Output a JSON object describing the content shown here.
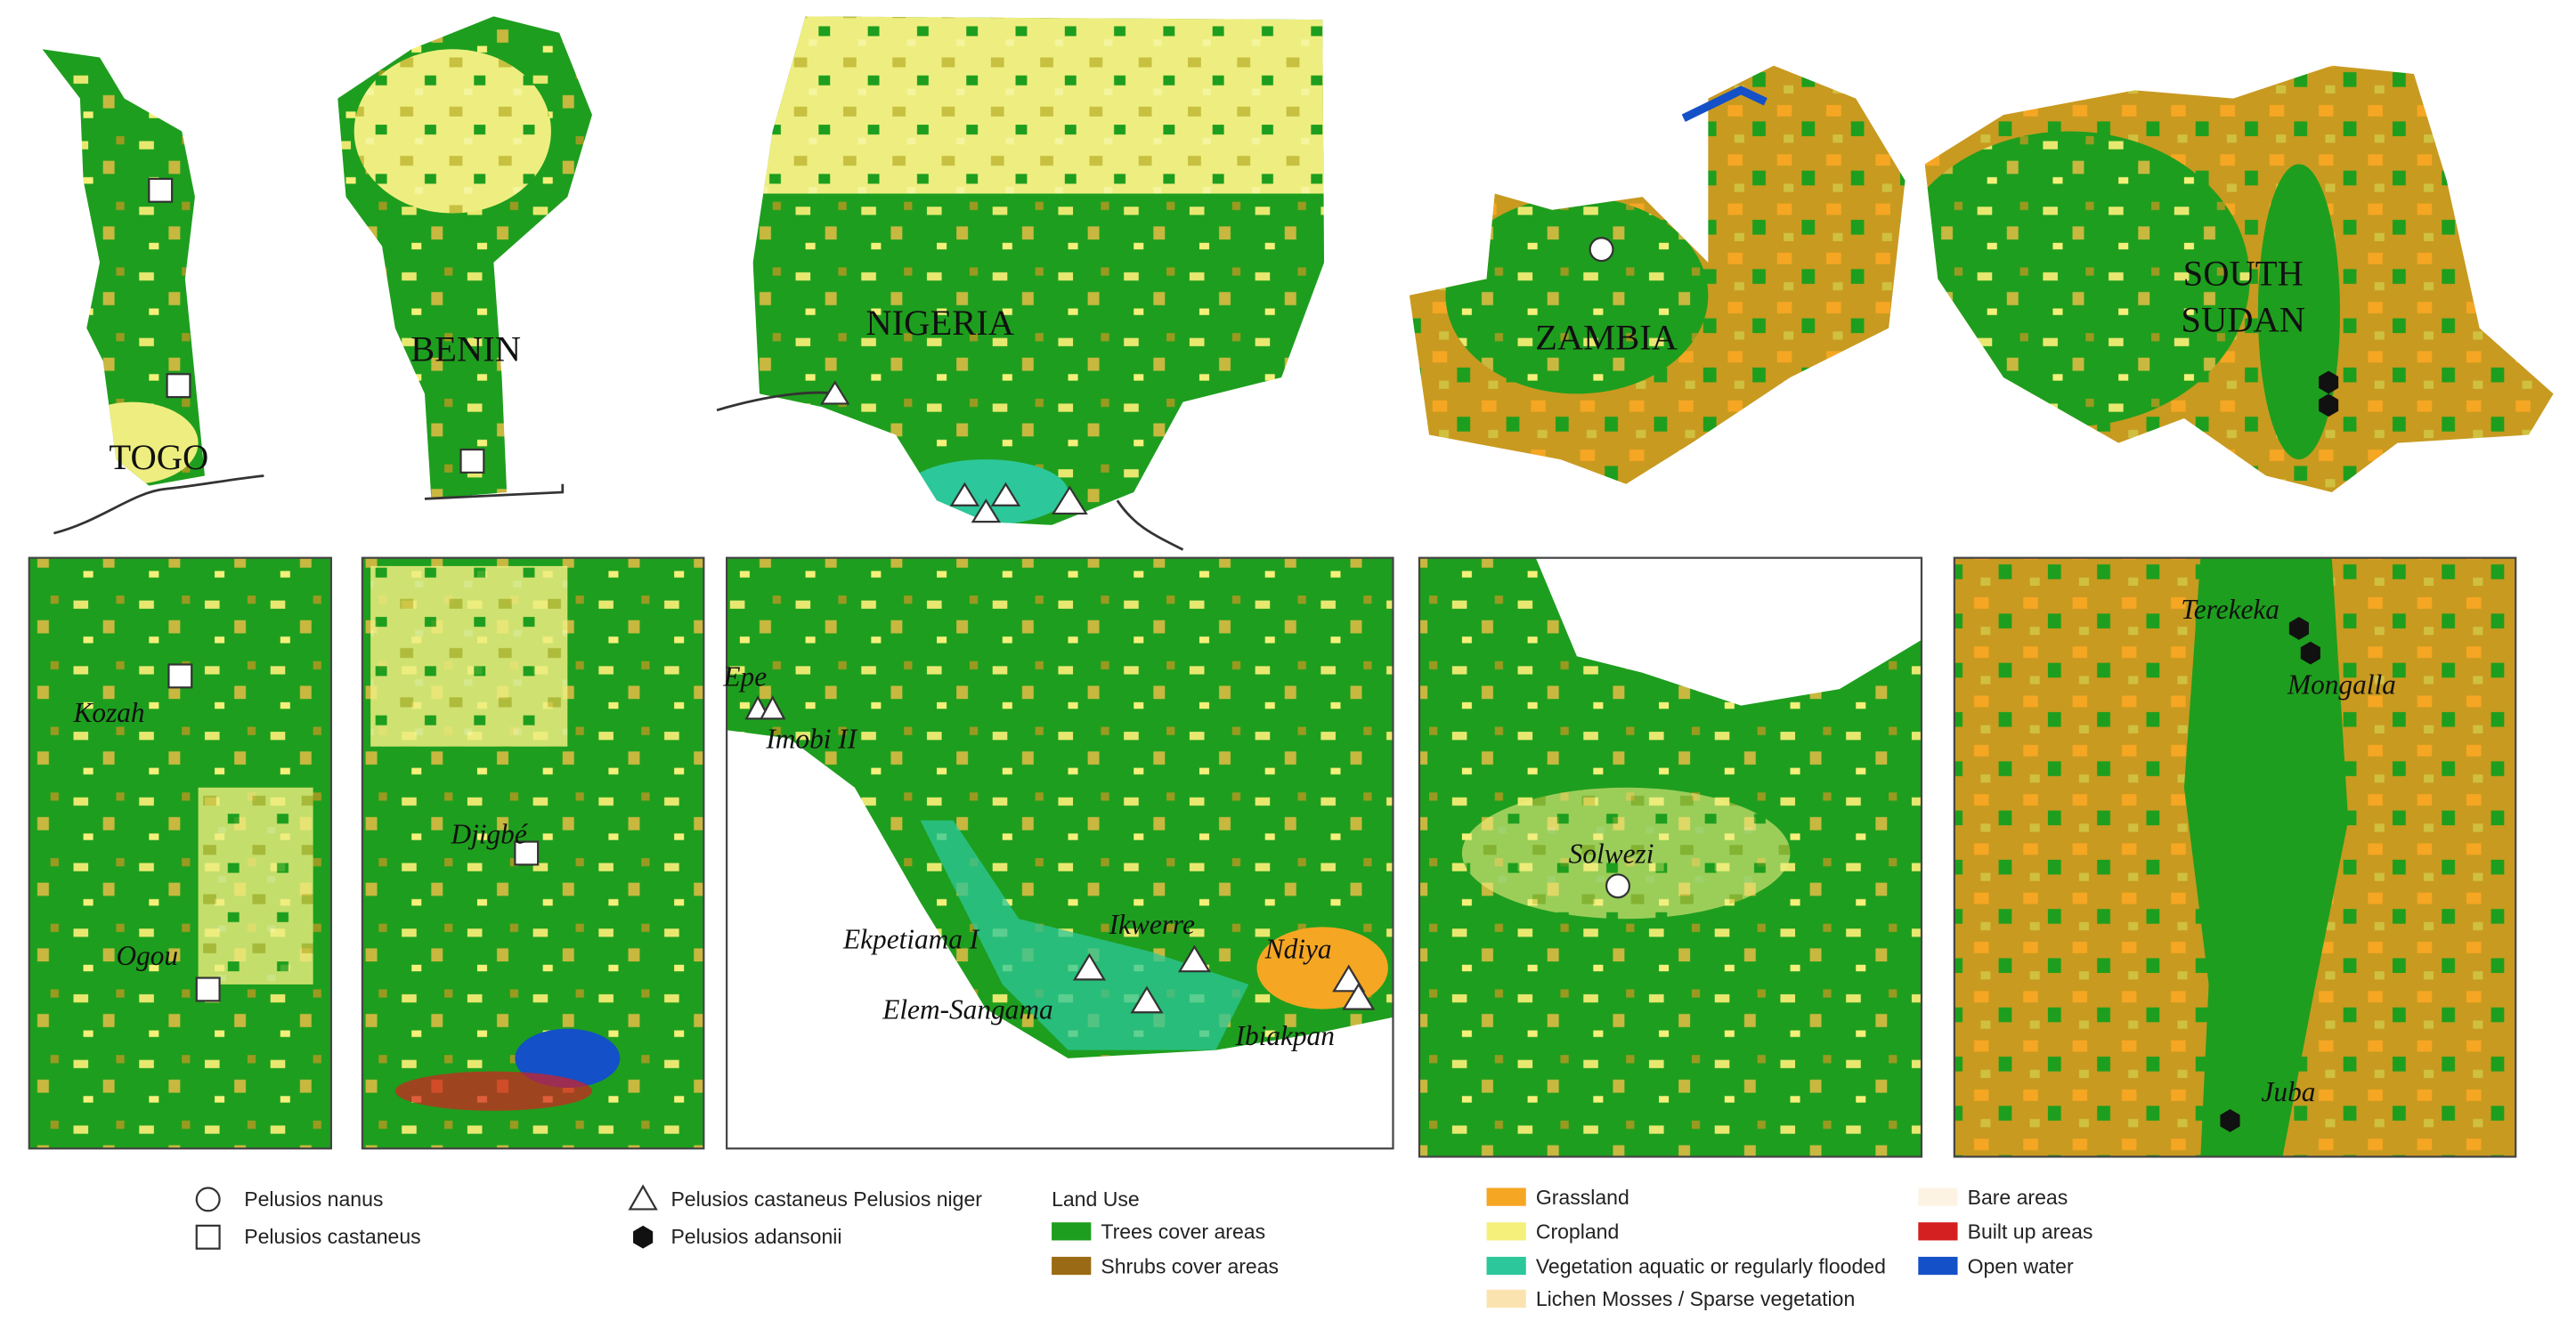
{
  "countries": [
    {
      "label": "TOGO"
    },
    {
      "label": "BENIN"
    },
    {
      "label": "NIGERIA"
    },
    {
      "label": "ZAMBIA"
    },
    {
      "label_lines": [
        "SOUTH",
        "SUDAN"
      ]
    }
  ],
  "insets": [
    {
      "places": [
        "Kozah",
        "Ogou"
      ]
    },
    {
      "places": [
        "Djigbé"
      ]
    },
    {
      "places": [
        "Epe",
        "Imobi II",
        "Ekpetiama I",
        "Ikwerre",
        "Ndiya",
        "Elem-Sangama",
        "Ibiakpan"
      ]
    },
    {
      "places": [
        "Solwezi"
      ]
    },
    {
      "places": [
        "Terekeka",
        "Mongalla",
        "Juba"
      ]
    }
  ],
  "legend": {
    "species": [
      "Pelusios nanus",
      "Pelusios castaneus",
      "Pelusios castaneus Pelusios niger",
      "Pelusios adansonii"
    ],
    "land_use_title": "Land Use",
    "land_use": [
      {
        "name": "Trees cover areas",
        "color": "#1e9e1e"
      },
      {
        "name": "Shrubs cover areas",
        "color": "#9a6a14"
      },
      {
        "name": "Grassland",
        "color": "#f5a623"
      },
      {
        "name": "Cropland",
        "color": "#f5f07a"
      },
      {
        "name": "Vegetation aquatic or regularly flooded",
        "color": "#2cc79a"
      },
      {
        "name": "Lichen Mosses / Sparse vegetation",
        "color": "#fbe3b0"
      },
      {
        "name": "Bare areas",
        "color": "#fcf3e3"
      },
      {
        "name": "Built up areas",
        "color": "#d42020"
      },
      {
        "name": "Open water",
        "color": "#1450c8"
      }
    ]
  }
}
